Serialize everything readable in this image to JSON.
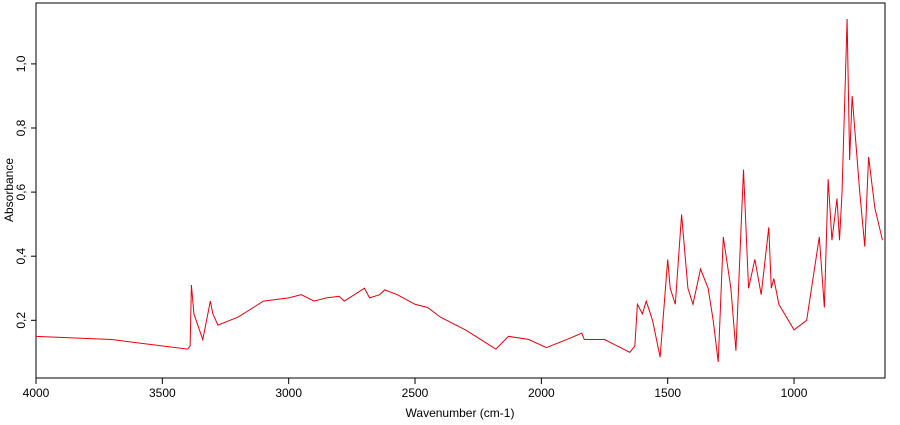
{
  "chart_data": {
    "type": "line",
    "x_label": "Wavenumber (cm-1)",
    "y_label": "Absorbance",
    "xlim": [
      4000,
      640
    ],
    "ylim": [
      0.02,
      1.19
    ],
    "xticks": [
      4000,
      3500,
      3000,
      2500,
      2000,
      1500,
      1000
    ],
    "yticks": [
      {
        "value": 0.2,
        "label": "0,2"
      },
      {
        "value": 0.4,
        "label": "0,4"
      },
      {
        "value": 0.6,
        "label": "0,6"
      },
      {
        "value": 0.8,
        "label": "0,8"
      },
      {
        "value": 1.0,
        "label": "1,0"
      }
    ],
    "grid": false,
    "series": [
      {
        "color": "#e8000b",
        "x": [
          4000,
          3700,
          3400,
          3390,
          3385,
          3375,
          3340,
          3310,
          3300,
          3280,
          3200,
          3100,
          3000,
          2950,
          2900,
          2850,
          2800,
          2780,
          2740,
          2700,
          2680,
          2640,
          2620,
          2570,
          2500,
          2450,
          2400,
          2300,
          2200,
          2180,
          2130,
          2050,
          1980,
          1900,
          1840,
          1830,
          1750,
          1700,
          1650,
          1630,
          1620,
          1600,
          1585,
          1560,
          1530,
          1500,
          1490,
          1470,
          1445,
          1420,
          1400,
          1370,
          1340,
          1320,
          1300,
          1280,
          1250,
          1230,
          1200,
          1180,
          1155,
          1130,
          1100,
          1090,
          1080,
          1060,
          1000,
          950,
          900,
          880,
          865,
          850,
          830,
          820,
          810,
          790,
          780,
          770,
          740,
          720,
          705,
          680,
          650
        ],
        "values": [
          0.15,
          0.14,
          0.11,
          0.12,
          0.31,
          0.22,
          0.14,
          0.26,
          0.22,
          0.185,
          0.21,
          0.26,
          0.27,
          0.28,
          0.26,
          0.27,
          0.275,
          0.26,
          0.28,
          0.3,
          0.27,
          0.28,
          0.295,
          0.28,
          0.25,
          0.24,
          0.21,
          0.17,
          0.12,
          0.11,
          0.15,
          0.14,
          0.115,
          0.14,
          0.16,
          0.14,
          0.14,
          0.12,
          0.1,
          0.12,
          0.25,
          0.22,
          0.26,
          0.2,
          0.085,
          0.39,
          0.3,
          0.25,
          0.53,
          0.3,
          0.25,
          0.36,
          0.3,
          0.2,
          0.07,
          0.46,
          0.3,
          0.105,
          0.67,
          0.3,
          0.39,
          0.28,
          0.49,
          0.3,
          0.33,
          0.25,
          0.17,
          0.2,
          0.46,
          0.24,
          0.64,
          0.45,
          0.58,
          0.45,
          0.6,
          1.14,
          0.7,
          0.9,
          0.6,
          0.43,
          0.71,
          0.55,
          0.45
        ]
      }
    ]
  }
}
